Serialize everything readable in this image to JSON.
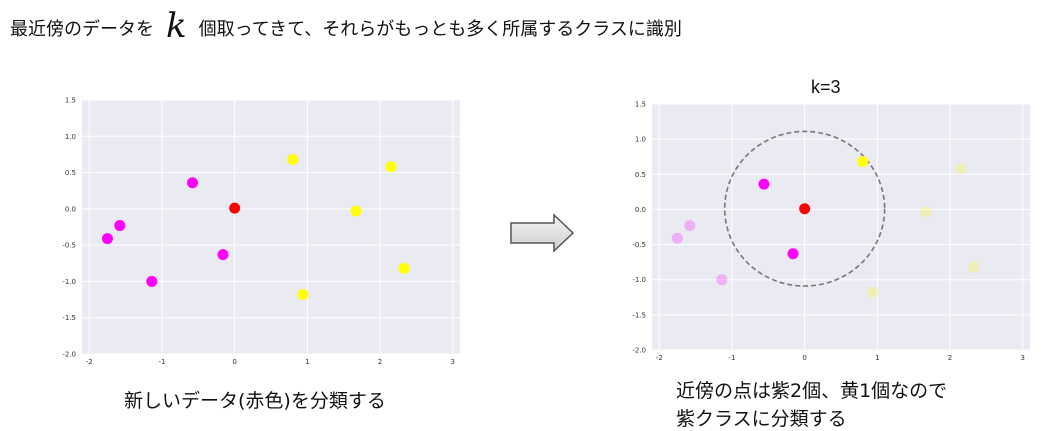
{
  "heading": {
    "prefix": "最近傍のデータを",
    "variable": "k",
    "suffix": "個取ってきて、それらがもっとも多く所属するクラスに識別"
  },
  "left_caption": "新しいデータ(赤色)を分類する",
  "right_title": "k=3",
  "right_caption_line1": "近傍の点は紫2個、黄1個なので",
  "right_caption_line2": "紫クラスに分類する",
  "colors": {
    "purple": "#ff00ff",
    "yellow": "#ffff00",
    "red": "#ff0000",
    "plot_bg": "#eaeaf2",
    "grid": "#ffffff",
    "circle": "#777777"
  },
  "chart_data": [
    {
      "type": "scatter",
      "title": "",
      "xlim": [
        -2.1,
        3.1
      ],
      "ylim": [
        -2.0,
        1.5
      ],
      "xticks": [
        -2,
        -1,
        0,
        1,
        2,
        3
      ],
      "yticks": [
        1.5,
        1.0,
        0.5,
        0.0,
        -0.5,
        -1.0,
        -1.5,
        -2.0
      ],
      "grid": true,
      "series": [
        {
          "class": "purple",
          "color": "#ff00ff",
          "faded": false,
          "points": [
            [
              -0.58,
              0.36
            ],
            [
              -1.75,
              -0.41
            ],
            [
              -1.58,
              -0.23
            ],
            [
              -1.14,
              -1.0
            ],
            [
              -0.16,
              -0.63
            ]
          ]
        },
        {
          "class": "yellow",
          "color": "#ffff00",
          "faded": false,
          "points": [
            [
              0.8,
              0.68
            ],
            [
              2.15,
              0.58
            ],
            [
              1.67,
              -0.03
            ],
            [
              2.33,
              -0.82
            ],
            [
              0.94,
              -1.18
            ]
          ]
        },
        {
          "class": "new",
          "color": "#ff0000",
          "faded": false,
          "points": [
            [
              0.0,
              0.01
            ]
          ]
        }
      ]
    },
    {
      "type": "scatter",
      "title": "k=3",
      "xlim": [
        -2.1,
        3.1
      ],
      "ylim": [
        -2.0,
        1.5
      ],
      "xticks": [
        -2,
        -1,
        0,
        1,
        2,
        3
      ],
      "yticks": [
        1.5,
        1.0,
        0.5,
        0.0,
        -0.5,
        -1.0,
        -1.5,
        -2.0
      ],
      "grid": true,
      "neighborhood_radius": 1.1,
      "series": [
        {
          "class": "purple-near",
          "color": "#ff00ff",
          "faded": false,
          "points": [
            [
              -0.56,
              0.36
            ],
            [
              -0.16,
              -0.63
            ]
          ]
        },
        {
          "class": "purple-far",
          "color": "#ff00ff",
          "faded": true,
          "points": [
            [
              -1.75,
              -0.41
            ],
            [
              -1.58,
              -0.23
            ],
            [
              -1.14,
              -1.0
            ]
          ]
        },
        {
          "class": "yellow-near",
          "color": "#ffff00",
          "faded": false,
          "points": [
            [
              0.8,
              0.68
            ]
          ]
        },
        {
          "class": "yellow-far",
          "color": "#ffff00",
          "faded": true,
          "points": [
            [
              2.15,
              0.58
            ],
            [
              1.67,
              -0.03
            ],
            [
              2.33,
              -0.82
            ],
            [
              0.94,
              -1.18
            ]
          ]
        },
        {
          "class": "new",
          "color": "#ff0000",
          "faded": false,
          "points": [
            [
              0.0,
              0.01
            ]
          ]
        }
      ]
    }
  ]
}
